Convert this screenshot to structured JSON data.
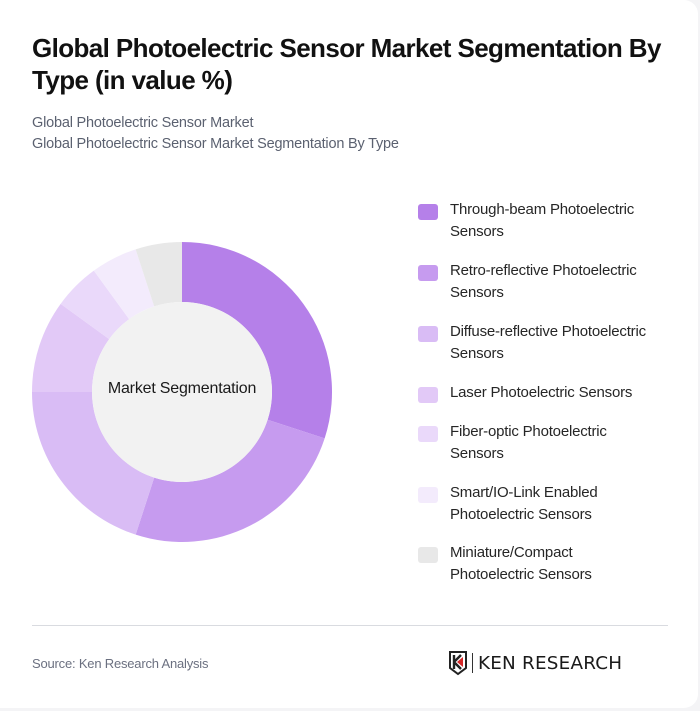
{
  "title": "Global Photoelectric Sensor Market Segmentation By Type (in value %)",
  "subtitle": {
    "line1": "Global Photoelectric Sensor Market",
    "line2": "Global Photoelectric Sensor Market Segmentation By Type"
  },
  "center_label": "Market Segmentation",
  "footer": {
    "source": "Source: Ken Research Analysis",
    "logo_text": "KEN RESEARCH"
  },
  "chart_data": {
    "type": "pie",
    "variant": "donut",
    "title": "Global Photoelectric Sensor Market Segmentation By Type (in value %)",
    "center_label": "Market Segmentation",
    "legend_position": "right",
    "categories": [
      "Through-beam Photoelectric Sensors",
      "Retro-reflective Photoelectric Sensors",
      "Diffuse-reflective Photoelectric Sensors",
      "Laser Photoelectric Sensors",
      "Fiber-optic Photoelectric Sensors",
      "Smart/IO-Link Enabled Photoelectric Sensors",
      "Miniature/Compact Photoelectric Sensors"
    ],
    "values": [
      30,
      25,
      20,
      10,
      5,
      5,
      5
    ],
    "colors": [
      "#b580e9",
      "#c69bef",
      "#d9bcf5",
      "#e2c9f7",
      "#ead9fa",
      "#f3ebfc",
      "#e8e8e8"
    ],
    "unit": "%"
  }
}
